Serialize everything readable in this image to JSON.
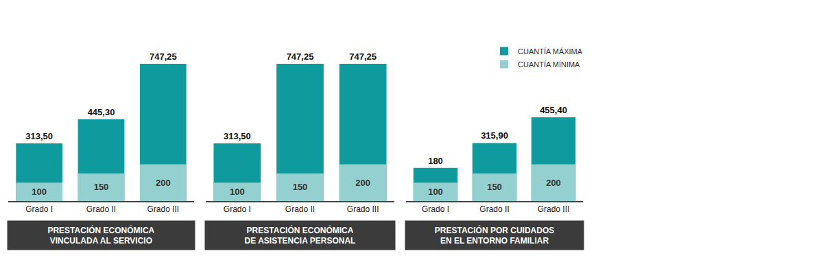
{
  "chart_data": [
    {
      "type": "bar",
      "title": "PRESTACIÓN ECONÓMICA\nVINCULADA AL SERVICIO",
      "categories": [
        "Grado I",
        "Grado II",
        "Grado III"
      ],
      "series": [
        {
          "name": "CUANTÍA MÁXIMA",
          "color": "#0f9b9d",
          "values": [
            313.5,
            445.3,
            747.25
          ],
          "value_labels": [
            "313,50",
            "445,30",
            "747,25"
          ]
        },
        {
          "name": "CUANTÍA MÍNIMA",
          "color": "#94d0cf",
          "values": [
            100,
            150,
            200
          ]
        }
      ],
      "ylim": [
        0,
        747.25
      ],
      "yticks": [
        0,
        747.25
      ],
      "stacked": false,
      "data_labels": true,
      "tick_labels": "x",
      "grid": false
    },
    {
      "type": "bar",
      "title": "PRESTACIÓN ECONÓMICA\nDE ASISTENCIA PERSONAL",
      "categories": [
        "Grado I",
        "Grado II",
        "Grado III"
      ],
      "series": [
        {
          "name": "CUANTÍA MÁXIMA",
          "color": "#0f9b9d",
          "values": [
            313.5,
            747.25,
            747.25
          ],
          "value_labels": [
            "313,50",
            "747,25",
            "747,25"
          ]
        },
        {
          "name": "CUANTÍA MÍNIMA",
          "color": "#94d0cf",
          "values": [
            100,
            150,
            200
          ]
        }
      ],
      "ylim": [
        0,
        747.25
      ],
      "yticks": [
        0,
        747.25
      ],
      "stacked": false,
      "data_labels": true,
      "tick_labels": "x",
      "grid": false
    },
    {
      "type": "bar",
      "title": "PRESTACIÓN POR CUIDADOS\nEN EL ENTORNO FAMILIAR",
      "categories": [
        "Grado I",
        "Grado II",
        "Grado III"
      ],
      "series": [
        {
          "name": "CUANTÍA MÁXIMA",
          "color": "#0f9b9d",
          "values": [
            180,
            315.9,
            455.4
          ],
          "value_labels": [
            "180",
            "315,90",
            "455,40"
          ]
        },
        {
          "name": "CUANTÍA MÍNIMA",
          "color": "#94d0cf",
          "values": [
            100,
            150,
            200
          ]
        }
      ],
      "ylim": [
        0,
        747.25
      ],
      "yticks": [
        0,
        747.25
      ],
      "stacked": false,
      "data_labels": true,
      "tick_labels": "x",
      "grid": false,
      "legend": "top right"
    }
  ]
}
